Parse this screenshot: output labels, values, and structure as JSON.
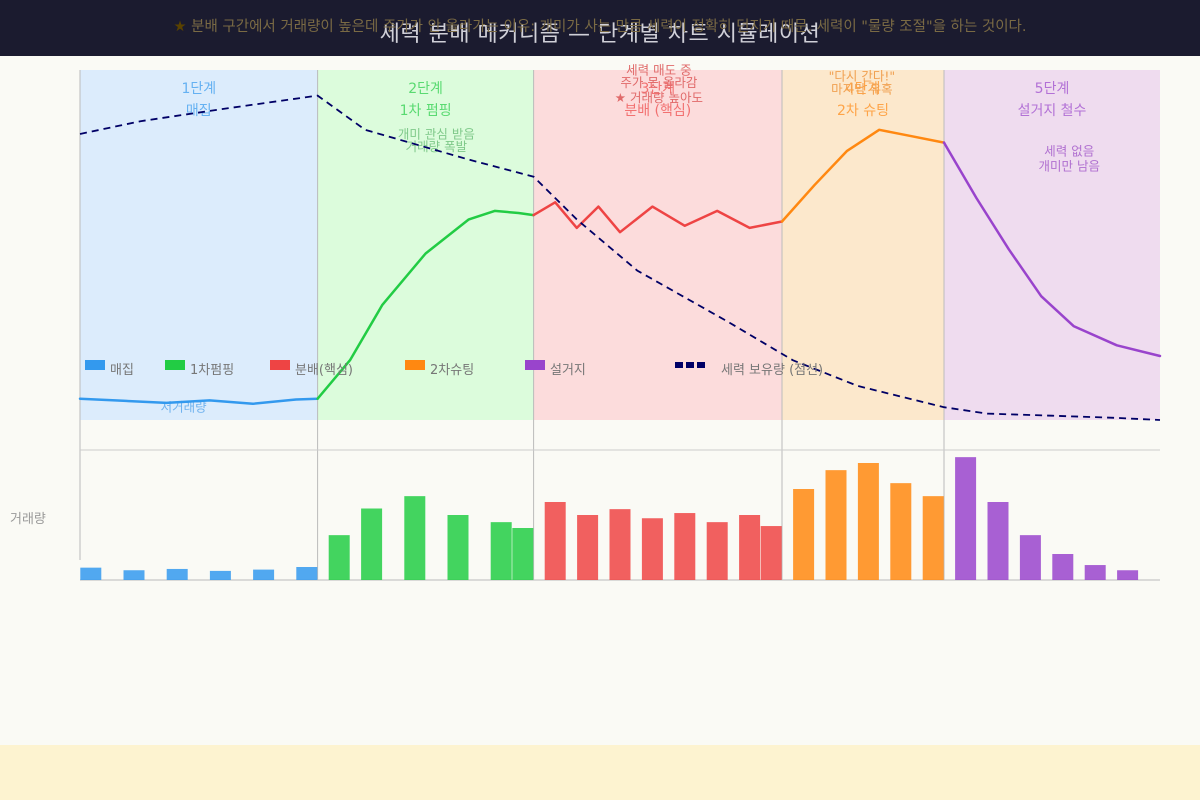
{
  "title": "세력 분배 메커니즘 — 단계별 차트 시뮬레이션",
  "footer": {
    "star": "★",
    "text": "분배 구간에서 거래량이 높은데 주가가 안 올라가는 이유: 개미가 사는 만큼 세력이 정확히 던지기 때문. 세력이 \"물량 조절\"을 하는 것이다."
  },
  "colors": {
    "title_bg": "#1b1b2f",
    "footer_bg": "#fdf3d0",
    "accumulation": "#3399ee",
    "pump": "#22cc44",
    "distribution": "#ee4444",
    "shooting": "#ff8811",
    "dump": "#9944cc",
    "holdings": "#000066"
  },
  "chart_data": {
    "type": "line",
    "xlabel": "",
    "ylabel": "",
    "volume_label": "거래량",
    "grid": false,
    "phases": [
      {
        "key": "accumulation",
        "title": "1단계",
        "subtitle": "매집",
        "start": 0,
        "end": 11,
        "color": "#3399ee",
        "bg": "#dcecfc"
      },
      {
        "key": "pump",
        "title": "2단계",
        "subtitle": "1차 펌핑",
        "start": 11,
        "end": 21,
        "color": "#22cc44",
        "bg": "#dcfcdc"
      },
      {
        "key": "distribution",
        "title": "3단계",
        "subtitle": "분배 (핵심)",
        "start": 21,
        "end": 32.5,
        "color": "#ee4444",
        "bg": "#fcdcdc"
      },
      {
        "key": "shooting",
        "title": "4단계",
        "subtitle": "2차 슈팅",
        "start": 32.5,
        "end": 40,
        "color": "#ff8811",
        "bg": "#fce8cc"
      },
      {
        "key": "dump",
        "title": "5단계",
        "subtitle": "설거지 철수",
        "start": 40,
        "end": 50,
        "color": "#9944cc",
        "bg": "#efdcef"
      }
    ],
    "annotations": [
      {
        "text": "저거래량",
        "x": 4.8,
        "y": 2,
        "color": "#6fb2ee"
      },
      {
        "text": "개미 관심 받음",
        "x": 16.5,
        "y": 66,
        "color": "#7fc98a"
      },
      {
        "text": "거래량 폭발",
        "x": 16.5,
        "y": 63,
        "color": "#7fc98a"
      },
      {
        "text": "세력 매도 중",
        "x": 26.8,
        "y": 81,
        "color": "#e06a6a"
      },
      {
        "text": "주가 못 올라감",
        "x": 26.8,
        "y": 78,
        "color": "#e06a6a"
      },
      {
        "text": "★ 거래량 높아도",
        "x": 26.8,
        "y": 74.5,
        "color": "#e06a6a"
      },
      {
        "text": "\"다시 간다!\"",
        "x": 36.2,
        "y": 79.5,
        "color": "#f0a050"
      },
      {
        "text": "마지막 유혹",
        "x": 36.2,
        "y": 76.5,
        "color": "#f0a050"
      },
      {
        "text": "세력 없음",
        "x": 45.8,
        "y": 62,
        "color": "#b070d0"
      },
      {
        "text": "개미만 남음",
        "x": 45.8,
        "y": 58.5,
        "color": "#b070d0"
      }
    ],
    "legend": {
      "position": "bottom-left",
      "items": [
        {
          "label": "매집",
          "color": "#3399ee",
          "style": "box"
        },
        {
          "label": "1차펌핑",
          "color": "#22cc44",
          "style": "box"
        },
        {
          "label": "분배(핵심)",
          "color": "#ee4444",
          "style": "box"
        },
        {
          "label": "2차슈팅",
          "color": "#ff8811",
          "style": "box"
        },
        {
          "label": "설거지",
          "color": "#9944cc",
          "style": "box"
        },
        {
          "label": "세력 보유량 (점선)",
          "color": "#000066",
          "style": "dash"
        }
      ]
    },
    "ylim": [
      0,
      82
    ],
    "xlim": [
      0,
      50
    ],
    "price_series": [
      {
        "phase": "accumulation",
        "points": [
          [
            0,
            5
          ],
          [
            2,
            4.5
          ],
          [
            4,
            4
          ],
          [
            6,
            4.6
          ],
          [
            8,
            3.8
          ],
          [
            10,
            4.8
          ],
          [
            11,
            5
          ]
        ]
      },
      {
        "phase": "pump",
        "points": [
          [
            11,
            5
          ],
          [
            12.5,
            14
          ],
          [
            14,
            27
          ],
          [
            16,
            39
          ],
          [
            18,
            47
          ],
          [
            19.2,
            49
          ],
          [
            20.3,
            48.5
          ],
          [
            21,
            48
          ]
        ]
      },
      {
        "phase": "distribution",
        "points": [
          [
            21,
            48
          ],
          [
            22,
            51
          ],
          [
            23,
            45
          ],
          [
            24,
            50
          ],
          [
            25,
            44
          ],
          [
            26.5,
            50
          ],
          [
            28,
            45.5
          ],
          [
            29.5,
            49
          ],
          [
            31,
            45
          ],
          [
            32.5,
            46.5
          ]
        ]
      },
      {
        "phase": "shooting",
        "points": [
          [
            32.5,
            46.5
          ],
          [
            34,
            55
          ],
          [
            35.5,
            63
          ],
          [
            37,
            68
          ],
          [
            38.5,
            66.5
          ],
          [
            40,
            65
          ]
        ]
      },
      {
        "phase": "dump",
        "points": [
          [
            40,
            65
          ],
          [
            41.5,
            52
          ],
          [
            43,
            40
          ],
          [
            44.5,
            29
          ],
          [
            46,
            22
          ],
          [
            48,
            17.5
          ],
          [
            50,
            15
          ]
        ]
      }
    ],
    "holdings_series": [
      [
        0,
        67
      ],
      [
        2.8,
        70
      ],
      [
        6.8,
        73
      ],
      [
        11,
        76
      ],
      [
        13.2,
        68
      ],
      [
        18,
        61
      ],
      [
        21,
        57
      ],
      [
        23,
        47
      ],
      [
        25.8,
        35
      ],
      [
        30,
        23
      ],
      [
        33,
        14
      ],
      [
        36,
        8
      ],
      [
        40,
        3
      ],
      [
        42,
        1.5
      ],
      [
        45,
        1
      ],
      [
        48,
        0.5
      ],
      [
        50,
        0
      ]
    ],
    "volume": {
      "ylim": [
        0,
        100
      ],
      "bars": [
        {
          "x": 0.5,
          "v": 9.5,
          "phase": "accumulation"
        },
        {
          "x": 2.5,
          "v": 7.5,
          "phase": "accumulation"
        },
        {
          "x": 4.5,
          "v": 8.5,
          "phase": "accumulation"
        },
        {
          "x": 6.5,
          "v": 7,
          "phase": "accumulation"
        },
        {
          "x": 8.5,
          "v": 8,
          "phase": "accumulation"
        },
        {
          "x": 10.5,
          "v": 10,
          "phase": "accumulation"
        },
        {
          "x": 12,
          "v": 34.5,
          "phase": "pump"
        },
        {
          "x": 13.5,
          "v": 55,
          "phase": "pump"
        },
        {
          "x": 15.5,
          "v": 64.5,
          "phase": "pump"
        },
        {
          "x": 17.5,
          "v": 50,
          "phase": "pump"
        },
        {
          "x": 19.5,
          "v": 44.5,
          "phase": "pump"
        },
        {
          "x": 20.5,
          "v": 40,
          "phase": "pump"
        },
        {
          "x": 22,
          "v": 60,
          "phase": "distribution"
        },
        {
          "x": 23.5,
          "v": 50,
          "phase": "distribution"
        },
        {
          "x": 25,
          "v": 54.5,
          "phase": "distribution"
        },
        {
          "x": 26.5,
          "v": 47.5,
          "phase": "distribution"
        },
        {
          "x": 28,
          "v": 51.5,
          "phase": "distribution"
        },
        {
          "x": 29.5,
          "v": 44.5,
          "phase": "distribution"
        },
        {
          "x": 31,
          "v": 50,
          "phase": "distribution"
        },
        {
          "x": 32,
          "v": 41.5,
          "phase": "distribution"
        },
        {
          "x": 33.5,
          "v": 70,
          "phase": "shooting"
        },
        {
          "x": 35,
          "v": 84.5,
          "phase": "shooting"
        },
        {
          "x": 36.5,
          "v": 90,
          "phase": "shooting"
        },
        {
          "x": 38,
          "v": 74.5,
          "phase": "shooting"
        },
        {
          "x": 39.5,
          "v": 64.5,
          "phase": "shooting"
        },
        {
          "x": 41,
          "v": 94.5,
          "phase": "dump"
        },
        {
          "x": 42.5,
          "v": 60,
          "phase": "dump"
        },
        {
          "x": 44,
          "v": 34.5,
          "phase": "dump"
        },
        {
          "x": 45.5,
          "v": 20,
          "phase": "dump"
        },
        {
          "x": 47,
          "v": 11.5,
          "phase": "dump"
        },
        {
          "x": 48.5,
          "v": 7.5,
          "phase": "dump"
        }
      ]
    }
  }
}
